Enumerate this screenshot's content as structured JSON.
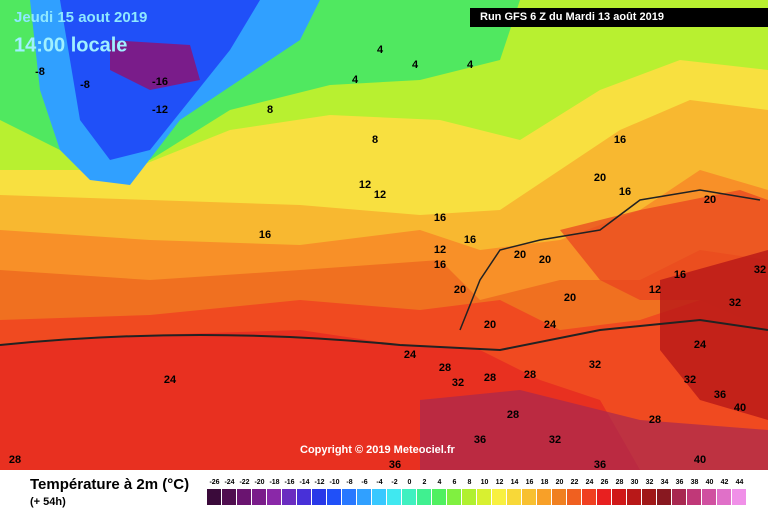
{
  "header": {
    "date": "Jeudi 15 aout 2019",
    "time": "14:00 locale",
    "run": "Run GFS 6 Z du Mardi 13 août 2019"
  },
  "copyright": "Copyright © 2019 Meteociel.fr",
  "legend": {
    "title": "Température à 2m (°C)",
    "subtitle": "(+ 54h)",
    "ticks": [
      -26,
      -24,
      -22,
      -20,
      -18,
      -16,
      -14,
      -12,
      -10,
      -8,
      -6,
      -4,
      -2,
      0,
      2,
      4,
      6,
      8,
      10,
      12,
      14,
      16,
      18,
      20,
      22,
      24,
      26,
      28,
      30,
      32,
      34,
      36,
      38,
      40,
      42,
      44
    ],
    "colors": [
      "#3a0a3a",
      "#4f0e4f",
      "#6a1470",
      "#7a1c8a",
      "#8a28a8",
      "#6a2cc0",
      "#4830d8",
      "#2838e8",
      "#2050f8",
      "#2878ff",
      "#30a0ff",
      "#38c8ff",
      "#40e8f0",
      "#40f0c0",
      "#40f090",
      "#50f060",
      "#80f040",
      "#b0f030",
      "#d8f030",
      "#f8f040",
      "#f8d838",
      "#f8c030",
      "#f8a028",
      "#f08020",
      "#f06020",
      "#f04020",
      "#e82020",
      "#d01818",
      "#b81818",
      "#a01818",
      "#881820",
      "#a82850",
      "#c03878",
      "#d050a0",
      "#e070c8",
      "#f090e8"
    ]
  },
  "map": {
    "labels": [
      -16,
      -12,
      -8,
      -8,
      4,
      4,
      4,
      4,
      8,
      8,
      12,
      12,
      12,
      16,
      16,
      16,
      16,
      16,
      16,
      20,
      20,
      20,
      20,
      20,
      20,
      24,
      24,
      28,
      32,
      28,
      28,
      32,
      32,
      24,
      32,
      32,
      36,
      40,
      28,
      28,
      36,
      36,
      32,
      40,
      24,
      16,
      12,
      20,
      36,
      28
    ]
  }
}
